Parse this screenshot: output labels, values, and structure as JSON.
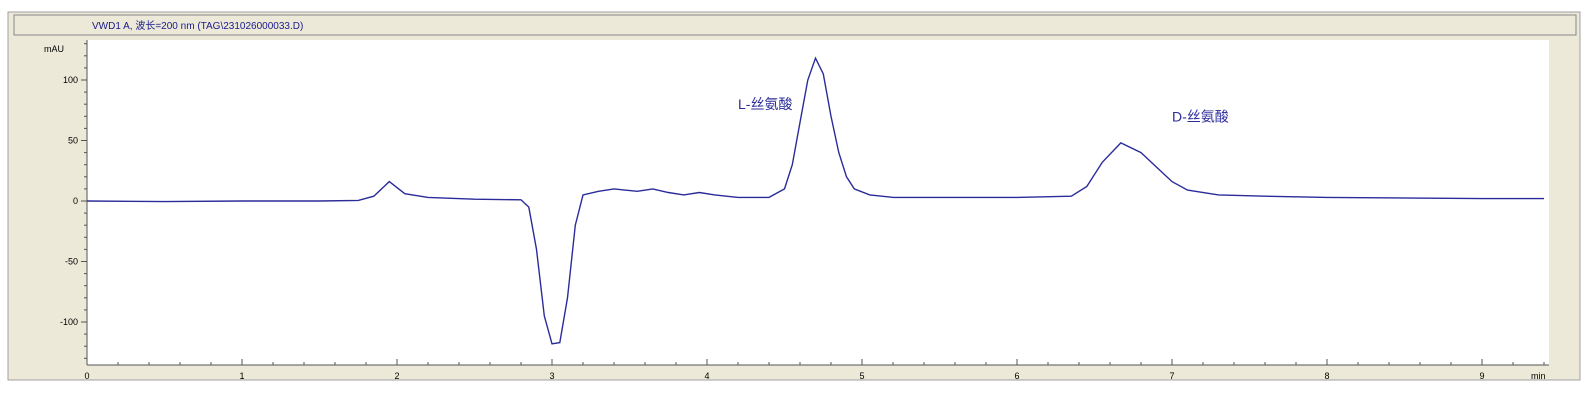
{
  "chart_data": {
    "type": "line",
    "title": "VWD1 A, 波长=200 nm (TAG\\231026000033.D)",
    "ylabel": "mAU",
    "xlabel": "min",
    "xlim": [
      0,
      9.4
    ],
    "ylim": [
      -136,
      133
    ],
    "x_ticks": [
      0,
      1,
      2,
      3,
      4,
      5,
      6,
      7,
      8,
      9
    ],
    "y_ticks": [
      -100,
      -50,
      0,
      50,
      100
    ],
    "grid": false,
    "line_color": "#2b2b9a",
    "annotations": [
      {
        "text": "L-丝氨酸",
        "x": 4.2,
        "y": 80
      },
      {
        "text": "D-丝氨酸",
        "x": 7.0,
        "y": 70
      }
    ],
    "series": [
      {
        "x": [
          0,
          0.5,
          1.0,
          1.5,
          1.75,
          1.85,
          1.95,
          2.05,
          2.2,
          2.5,
          2.8,
          2.85,
          2.9,
          2.95,
          3.0,
          3.05,
          3.1,
          3.15,
          3.2,
          3.3,
          3.4,
          3.55,
          3.65,
          3.75,
          3.85,
          3.95,
          4.05,
          4.2,
          4.4,
          4.5,
          4.55,
          4.6,
          4.65,
          4.7,
          4.75,
          4.8,
          4.85,
          4.9,
          4.95,
          5.05,
          5.2,
          6.0,
          6.35,
          6.45,
          6.55,
          6.67,
          6.8,
          6.9,
          7.0,
          7.1,
          7.3,
          7.6,
          8.0,
          9.0,
          9.4
        ],
        "y": [
          0,
          -0.5,
          0,
          0,
          0.5,
          4,
          16,
          6,
          3,
          1.5,
          1,
          -5,
          -40,
          -95,
          -118,
          -117,
          -80,
          -20,
          5,
          8,
          10,
          8,
          10,
          7,
          5,
          7,
          5,
          3,
          3,
          10,
          30,
          65,
          100,
          118,
          105,
          70,
          40,
          20,
          10,
          5,
          3,
          3,
          4,
          12,
          32,
          48,
          40,
          28,
          16,
          9,
          5,
          4,
          3,
          2,
          2
        ]
      }
    ]
  }
}
